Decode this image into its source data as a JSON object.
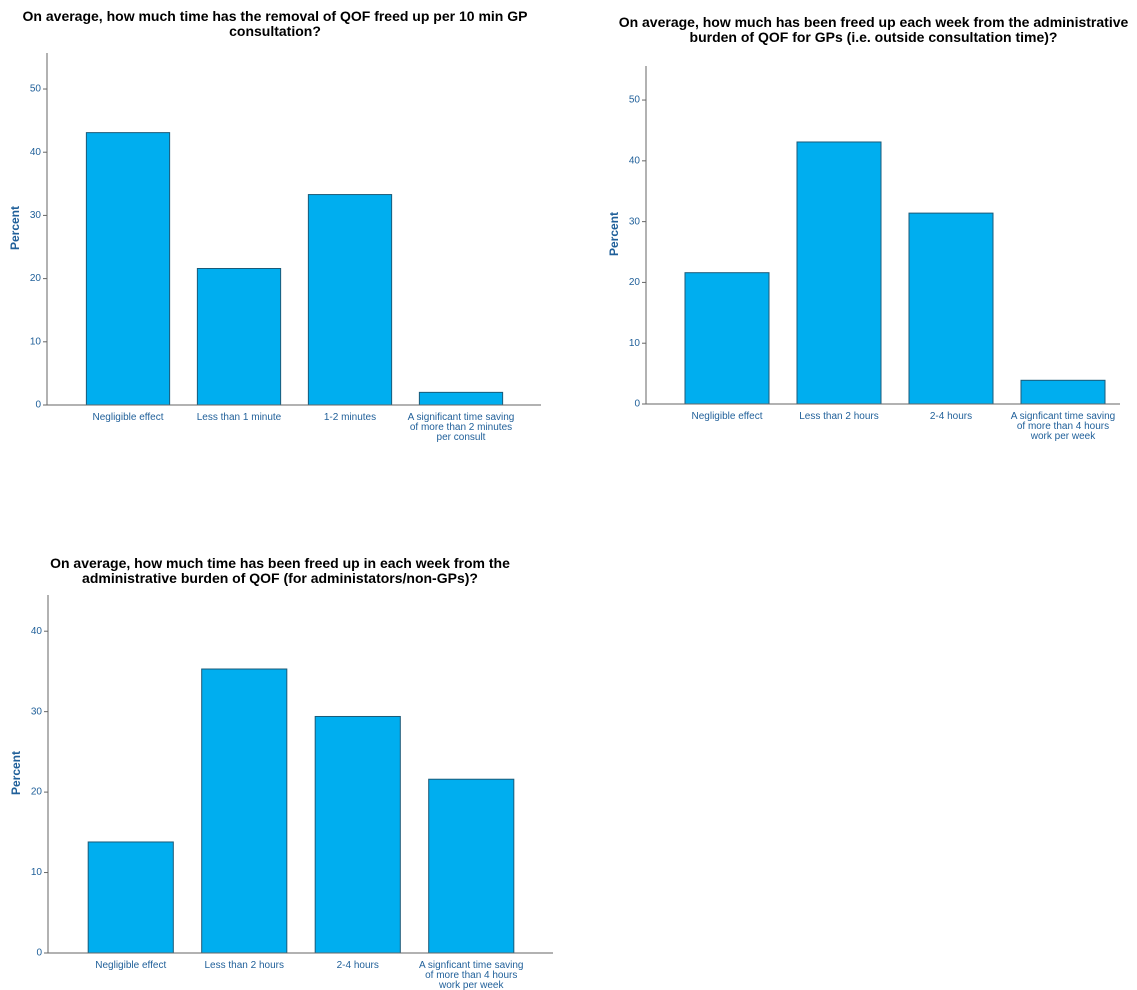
{
  "chart_data": [
    {
      "type": "bar",
      "title": "On average, how much time has the removal of QOF freed up per 10 min GP consultation?",
      "y_label": "Percent",
      "categories": [
        "Negligible effect",
        "Less than 1 minute",
        "1-2 minutes",
        "A significant time saving of more than 2 minutes per consult"
      ],
      "values": [
        43.1,
        21.6,
        33.3,
        2.0
      ],
      "color": "#00aeef",
      "ylim": [
        0,
        55.7
      ],
      "yticks": [
        0,
        10,
        20,
        30,
        40,
        50
      ],
      "grid": false
    },
    {
      "type": "bar",
      "title": "On average, how much has been freed up each week from the administrative burden of QOF for GPs (i.e. outside consultation time)?",
      "y_label": "Percent",
      "categories": [
        "Negligible effect",
        "Less than 2 hours",
        "2-4 hours",
        "A signficant time saving of more than 4 hours work per week"
      ],
      "values": [
        21.6,
        43.1,
        31.4,
        3.9
      ],
      "color": "#00aeef",
      "ylim": [
        0,
        55.6
      ],
      "yticks": [
        0,
        10,
        20,
        30,
        40,
        50
      ],
      "grid": false
    },
    {
      "type": "bar",
      "title": "On average, how much time has been freed up in each week from the administrative burden of QOF (for administators/non-GPs)?",
      "y_label": "Percent",
      "categories": [
        "Negligible effect",
        "Less than 2 hours",
        "2-4 hours",
        "A signficant time saving of more than 4 hours work per week"
      ],
      "values": [
        13.8,
        35.3,
        29.4,
        21.6
      ],
      "color": "#00aeef",
      "ylim": [
        0,
        44.5
      ],
      "yticks": [
        0,
        10,
        20,
        30,
        40
      ],
      "grid": false
    }
  ]
}
